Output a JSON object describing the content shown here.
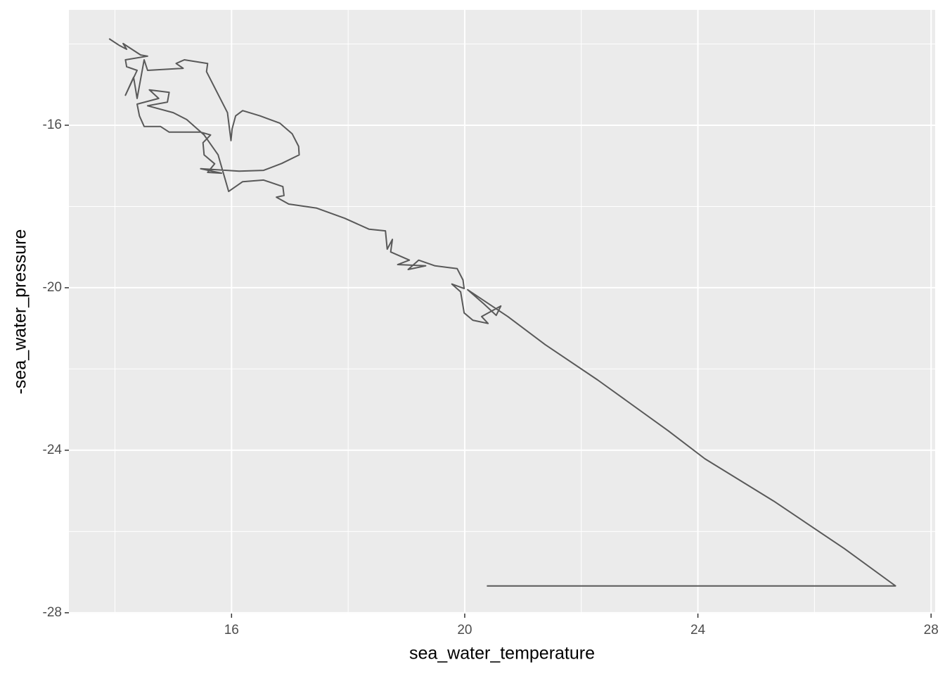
{
  "chart_data": {
    "type": "line",
    "x_label": "sea_water_temperature",
    "y_label": "-sea_water_pressure",
    "color": "#595959",
    "panel_color": "#ebebeb",
    "grid": true,
    "xlim": [
      13.21,
      28.07
    ],
    "ylim": [
      -28.02,
      -13.16
    ],
    "xticks": [
      16,
      20,
      24,
      28
    ],
    "yticks": [
      -28,
      -24,
      -20,
      -16
    ],
    "x_minor_ticks": [
      14,
      18,
      22,
      26
    ],
    "y_minor_ticks": [
      -26,
      -22,
      -18,
      -14
    ],
    "x": [
      13.9,
      14.08,
      14.2,
      14.14,
      14.44,
      14.56,
      14.18,
      14.2,
      14.38,
      14.18,
      14.32,
      14.38,
      14.5,
      14.56,
      15.17,
      15.05,
      15.19,
      15.59,
      15.57,
      15.93,
      15.99,
      16.01,
      16.07,
      16.19,
      16.49,
      16.83,
      17.04,
      17.15,
      17.16,
      16.86,
      16.55,
      16.13,
      15.47,
      15.83,
      15.59,
      15.71,
      15.53,
      15.51,
      15.64,
      15.47,
      14.93,
      14.78,
      14.5,
      14.42,
      14.38,
      14.75,
      14.59,
      14.93,
      14.9,
      14.56,
      15.0,
      15.23,
      15.53,
      15.77,
      15.95,
      16.19,
      16.55,
      16.88,
      16.9,
      16.77,
      16.98,
      17.46,
      17.94,
      18.36,
      18.64,
      18.67,
      18.76,
      18.73,
      19.05,
      18.85,
      19.33,
      19.03,
      19.21,
      19.49,
      19.87,
      19.97,
      19.99,
      19.78,
      19.93,
      19.99,
      20.14,
      20.4,
      20.29,
      20.62,
      20.54,
      20.33,
      20.05,
      20.74,
      21.38,
      22.28,
      23.49,
      24.12,
      25.3,
      26.51,
      27.39,
      20.38
    ],
    "values": [
      -13.87,
      -14.04,
      -14.13,
      -13.99,
      -14.27,
      -14.3,
      -14.39,
      -14.56,
      -14.65,
      -15.26,
      -14.82,
      -15.34,
      -14.39,
      -14.65,
      -14.6,
      -14.48,
      -14.39,
      -14.48,
      -14.68,
      -15.69,
      -16.38,
      -16.09,
      -15.77,
      -15.64,
      -15.77,
      -15.95,
      -16.21,
      -16.52,
      -16.73,
      -16.94,
      -17.11,
      -17.13,
      -17.07,
      -17.18,
      -17.16,
      -16.95,
      -16.73,
      -16.43,
      -16.24,
      -16.17,
      -16.17,
      -16.03,
      -16.03,
      -15.77,
      -15.48,
      -15.34,
      -15.13,
      -15.19,
      -15.43,
      -15.52,
      -15.69,
      -15.86,
      -16.24,
      -16.73,
      -17.63,
      -17.39,
      -17.35,
      -17.51,
      -17.73,
      -17.77,
      -17.94,
      -18.04,
      -18.29,
      -18.56,
      -18.6,
      -19.05,
      -18.81,
      -19.12,
      -19.32,
      -19.43,
      -19.46,
      -19.55,
      -19.32,
      -19.46,
      -19.53,
      -19.81,
      -20.02,
      -19.91,
      -20.1,
      -20.62,
      -20.8,
      -20.88,
      -20.71,
      -20.45,
      -20.68,
      -20.4,
      -20.05,
      -20.71,
      -21.4,
      -22.27,
      -23.52,
      -24.21,
      -25.25,
      -26.42,
      -27.34,
      -27.34
    ]
  }
}
